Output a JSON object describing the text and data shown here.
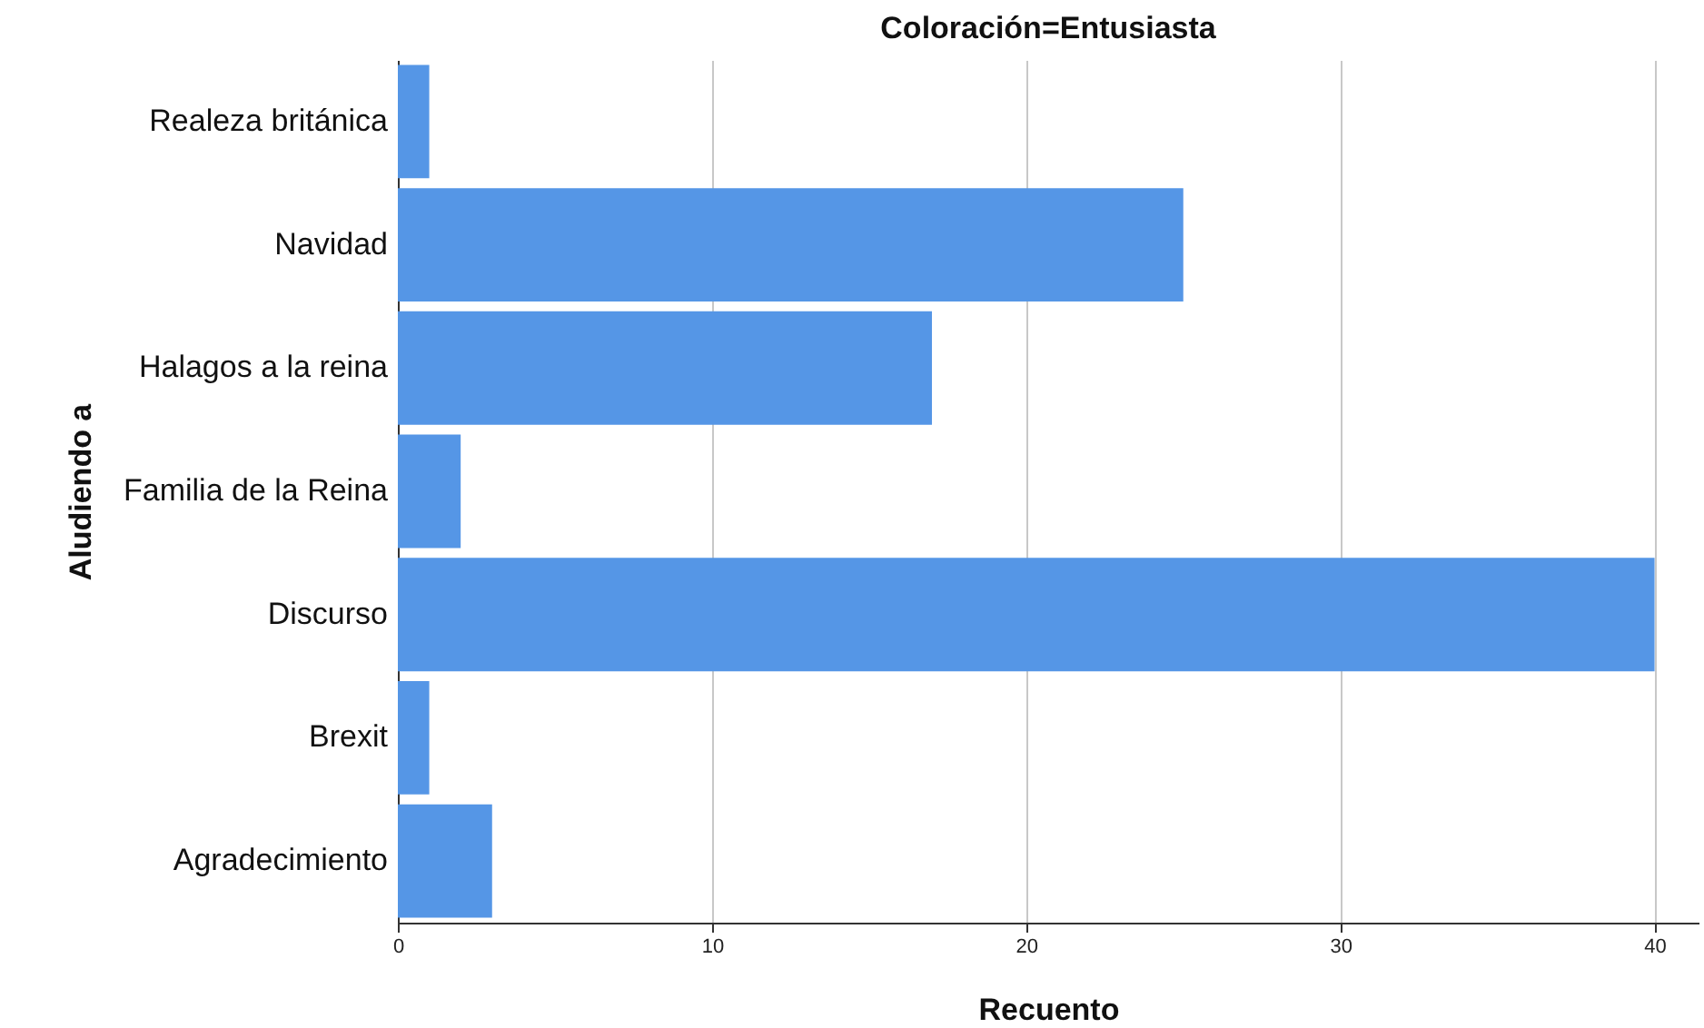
{
  "chart_data": {
    "type": "bar",
    "orientation": "horizontal",
    "title": "Coloración=Entusiasta",
    "xlabel": "Recuento",
    "ylabel": "Aludiendo a",
    "categories": [
      "Realeza británica",
      "Navidad",
      "Halagos a la reina",
      "Familia de la Reina",
      "Discurso",
      "Brexit",
      "Agradecimiento"
    ],
    "values": [
      1,
      25,
      17,
      2,
      40,
      1,
      3
    ],
    "color": "#5596e6",
    "xlim": [
      0,
      41.4
    ],
    "xticks": [
      0,
      10,
      20,
      30,
      40
    ],
    "grid": "x"
  }
}
